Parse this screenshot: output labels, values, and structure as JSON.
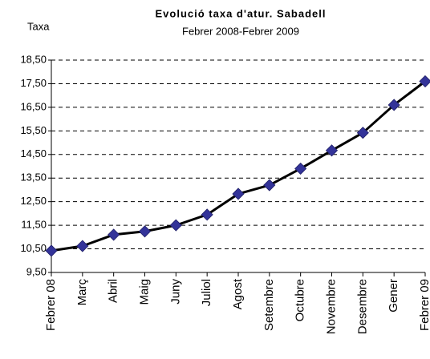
{
  "chart_data": {
    "type": "line",
    "title": "Evolució taxa d'atur. Sabadell",
    "subtitle": "Febrer  2008-Febrer 2009",
    "y_label": "Taxa",
    "categories": [
      "Febrer 08",
      "Març",
      "Abril",
      "Maig",
      "Juny",
      "Juliol",
      "Agost",
      "Setembre",
      "Octubre",
      "Novembre",
      "Desembre",
      "Gener",
      "Febrer 09"
    ],
    "series": [
      {
        "name": "Taxa",
        "color": "#000000",
        "marker_color": "#333399",
        "values": [
          10.42,
          10.62,
          11.1,
          11.24,
          11.5,
          11.95,
          12.83,
          13.2,
          13.9,
          14.67,
          15.42,
          16.6,
          17.6
        ]
      }
    ],
    "ylim": [
      9.5,
      18.5
    ],
    "yticks": [
      {
        "value": 9.5,
        "label": "9,50"
      },
      {
        "value": 10.5,
        "label": "10,50"
      },
      {
        "value": 11.5,
        "label": "11,50"
      },
      {
        "value": 12.5,
        "label": "12,50"
      },
      {
        "value": 13.5,
        "label": "13,50"
      },
      {
        "value": 14.5,
        "label": "14,50"
      },
      {
        "value": 15.5,
        "label": "15,50"
      },
      {
        "value": 16.5,
        "label": "16,50"
      },
      {
        "value": 17.5,
        "label": "17,50"
      },
      {
        "value": 18.5,
        "label": "18,50"
      }
    ],
    "grid": true
  }
}
